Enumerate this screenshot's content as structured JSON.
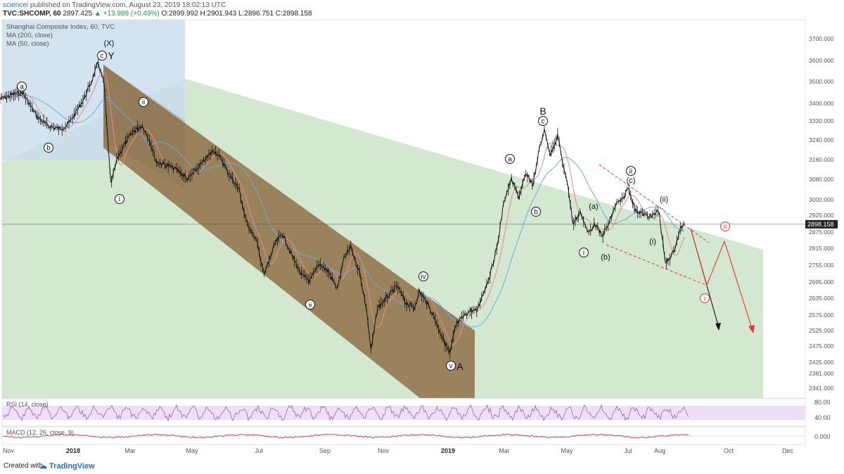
{
  "header": {
    "publisher": "sciencei",
    "published_text": "published on TradingView.com, August 23, 2019 18:02:13 UTC",
    "symbol": "TVC:SHCOMP, 60",
    "last": "2897.425",
    "change": "+13.989 (+0.49%)",
    "ohlc": "O:2899.992 H:2901.943 L:2896.751 C:2898.158"
  },
  "legend": {
    "title": "Shanghai Composite Index, 60, TVC",
    "ma200": "MA (200, close)",
    "ma50": "MA (50, close)"
  },
  "indicators": {
    "rsi": "RSI (14, close)",
    "macd": "MACD (12, 26, close, 9)",
    "rsi_ticks": [
      "80.00",
      "40.00"
    ],
    "macd_tick": "0.000"
  },
  "colors": {
    "candles": "#111111",
    "ma200": "#6fa8d8",
    "ma50": "#e88a8a",
    "channel": "#8b6a3e",
    "triangle": "#c6dfc0",
    "blue_box": "#c9dcec",
    "rsi_band": "#eadcf5",
    "rsi_line": "#9b5fc7",
    "macd": "#c2185b",
    "arrow_red": "#e53935",
    "arrow_black": "#111111",
    "price_label_bg": "#222222"
  },
  "chart_data": {
    "type": "line",
    "title": "Shanghai Composite Index, 60, TVC",
    "x_tick_labels": [
      "Nov",
      "2018",
      "Mar",
      "May",
      "Jul",
      "Sep",
      "Nov",
      "2019",
      "Mar",
      "May",
      "Jul",
      "Aug",
      "Oct",
      "Dec"
    ],
    "x_tick_dates": [
      "2017-11-01",
      "2018-01-01",
      "2018-03-01",
      "2018-05-01",
      "2018-07-01",
      "2018-09-01",
      "2018-11-01",
      "2019-01-01",
      "2019-03-01",
      "2019-05-01",
      "2019-07-01",
      "2019-08-01",
      "2019-10-01",
      "2019-12-01"
    ],
    "y_tick_labels": [
      "3700.000",
      "3600.000",
      "3500.000",
      "3400.000",
      "3320.000",
      "3240.000",
      "3160.000",
      "3080.000",
      "3000.000",
      "2925.000",
      "2875.000",
      "2815.000",
      "2755.000",
      "2695.000",
      "2635.000",
      "2575.000",
      "2525.000",
      "2475.000",
      "2425.000",
      "2381.000",
      "2341.000"
    ],
    "last_price": 2898.158,
    "last_price_label": "2898.158",
    "price_path": [
      [
        "2017-10-24",
        3420
      ],
      [
        "2017-11-05",
        3440
      ],
      [
        "2017-11-14",
        3450
      ],
      [
        "2017-11-28",
        3340
      ],
      [
        "2017-12-08",
        3300
      ],
      [
        "2017-12-20",
        3285
      ],
      [
        "2017-12-28",
        3310
      ],
      [
        "2018-01-04",
        3360
      ],
      [
        "2018-01-12",
        3420
      ],
      [
        "2018-01-20",
        3500
      ],
      [
        "2018-01-27",
        3590
      ],
      [
        "2018-02-02",
        3490
      ],
      [
        "2018-02-09",
        3060
      ],
      [
        "2018-02-16",
        3170
      ],
      [
        "2018-02-26",
        3240
      ],
      [
        "2018-03-05",
        3280
      ],
      [
        "2018-03-13",
        3300
      ],
      [
        "2018-03-20",
        3240
      ],
      [
        "2018-03-27",
        3150
      ],
      [
        "2018-04-05",
        3140
      ],
      [
        "2018-04-16",
        3120
      ],
      [
        "2018-04-27",
        3080
      ],
      [
        "2018-05-07",
        3130
      ],
      [
        "2018-05-21",
        3200
      ],
      [
        "2018-05-28",
        3160
      ],
      [
        "2018-06-04",
        3100
      ],
      [
        "2018-06-13",
        3040
      ],
      [
        "2018-06-19",
        2910
      ],
      [
        "2018-06-29",
        2840
      ],
      [
        "2018-07-06",
        2720
      ],
      [
        "2018-07-16",
        2830
      ],
      [
        "2018-07-23",
        2870
      ],
      [
        "2018-08-01",
        2790
      ],
      [
        "2018-08-10",
        2720
      ],
      [
        "2018-08-18",
        2700
      ],
      [
        "2018-08-27",
        2760
      ],
      [
        "2018-09-05",
        2730
      ],
      [
        "2018-09-14",
        2670
      ],
      [
        "2018-09-21",
        2780
      ],
      [
        "2018-09-28",
        2820
      ],
      [
        "2018-10-08",
        2720
      ],
      [
        "2018-10-15",
        2580
      ],
      [
        "2018-10-19",
        2460
      ],
      [
        "2018-10-26",
        2600
      ],
      [
        "2018-11-05",
        2640
      ],
      [
        "2018-11-14",
        2680
      ],
      [
        "2018-11-22",
        2620
      ],
      [
        "2018-11-30",
        2600
      ],
      [
        "2018-12-05",
        2660
      ],
      [
        "2018-12-12",
        2620
      ],
      [
        "2018-12-20",
        2560
      ],
      [
        "2018-12-27",
        2500
      ],
      [
        "2019-01-03",
        2450
      ],
      [
        "2019-01-09",
        2540
      ],
      [
        "2019-01-17",
        2570
      ],
      [
        "2019-01-24",
        2590
      ],
      [
        "2019-01-31",
        2590
      ],
      [
        "2019-02-14",
        2720
      ],
      [
        "2019-02-22",
        2830
      ],
      [
        "2019-03-01",
        3000
      ],
      [
        "2019-03-08",
        3080
      ],
      [
        "2019-03-15",
        3010
      ],
      [
        "2019-03-22",
        3100
      ],
      [
        "2019-03-29",
        3060
      ],
      [
        "2019-04-04",
        3200
      ],
      [
        "2019-04-09",
        3280
      ],
      [
        "2019-04-15",
        3180
      ],
      [
        "2019-04-22",
        3260
      ],
      [
        "2019-04-29",
        3100
      ],
      [
        "2019-05-02",
        3060
      ],
      [
        "2019-05-07",
        2900
      ],
      [
        "2019-05-15",
        2940
      ],
      [
        "2019-05-22",
        2870
      ],
      [
        "2019-05-29",
        2900
      ],
      [
        "2019-06-05",
        2860
      ],
      [
        "2019-06-12",
        2900
      ],
      [
        "2019-06-19",
        2980
      ],
      [
        "2019-06-26",
        3000
      ],
      [
        "2019-07-01",
        3050
      ],
      [
        "2019-07-08",
        2950
      ],
      [
        "2019-07-16",
        2930
      ],
      [
        "2019-07-24",
        2920
      ],
      [
        "2019-07-31",
        2950
      ],
      [
        "2019-08-06",
        2760
      ],
      [
        "2019-08-13",
        2800
      ],
      [
        "2019-08-20",
        2890
      ],
      [
        "2019-08-23",
        2898
      ]
    ],
    "wave_labels": [
      {
        "text": "(X)",
        "style": "plain"
      },
      {
        "text": "c",
        "style": "circle"
      },
      {
        "text": "Y",
        "style": "plain"
      },
      {
        "text": "a",
        "style": "circle"
      },
      {
        "text": "b",
        "style": "circle"
      },
      {
        "text": "i",
        "style": "circle"
      },
      {
        "text": "ii",
        "style": "circle"
      },
      {
        "text": "iii",
        "style": "circle"
      },
      {
        "text": "iv",
        "style": "circle"
      },
      {
        "text": "v",
        "style": "circle"
      },
      {
        "text": "A",
        "style": "plain"
      },
      {
        "text": "B",
        "style": "plain"
      },
      {
        "text": "c",
        "style": "circle"
      },
      {
        "text": "a",
        "style": "circle"
      },
      {
        "text": "b",
        "style": "circle"
      },
      {
        "text": "i",
        "style": "circle"
      },
      {
        "text": "(a)",
        "style": "plain"
      },
      {
        "text": "(b)",
        "style": "plain"
      },
      {
        "text": "ii",
        "style": "circle"
      },
      {
        "text": "(c)",
        "style": "plain"
      },
      {
        "text": "(ii)",
        "style": "plain"
      },
      {
        "text": "(i)",
        "style": "plain"
      },
      {
        "text": "ii",
        "style": "circle-red"
      },
      {
        "text": "i",
        "style": "circle-red"
      }
    ],
    "grid": false
  }
}
